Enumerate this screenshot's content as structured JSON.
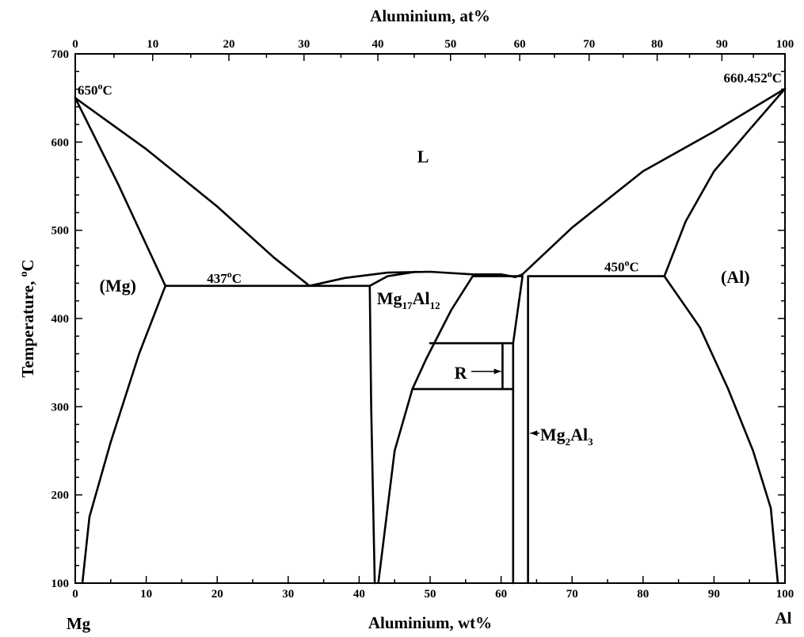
{
  "chart_data": {
    "type": "phase-diagram",
    "title": "",
    "xlabel": "Aluminium, wt%",
    "x2label": "Aluminium, at%",
    "ylabel": "Temperature, °C",
    "ylabel_parts": {
      "prefix": "Temperature, ",
      "sup": "o",
      "unit": "C"
    },
    "xlim": [
      0,
      100
    ],
    "ylim": [
      100,
      700
    ],
    "x_ticks": [
      0,
      10,
      20,
      30,
      40,
      50,
      60,
      70,
      80,
      90,
      100
    ],
    "x2_ticks": [
      0,
      10,
      20,
      30,
      40,
      50,
      60,
      70,
      80,
      90,
      100
    ],
    "y_ticks": [
      100,
      200,
      300,
      400,
      500,
      600,
      700
    ],
    "x2_tick_wt_positions": [
      0,
      10.91,
      21.65,
      32.23,
      42.64,
      52.88,
      62.62,
      72.4,
      81.99,
      91.11,
      100
    ],
    "grid": false,
    "end_labels": {
      "left": "Mg",
      "right": "Al"
    },
    "annotations": [
      {
        "text": "650",
        "deg": "o",
        "unit": "C",
        "x": 0,
        "y": 650
      },
      {
        "text": "660.452",
        "deg": "o",
        "unit": "C",
        "x": 100,
        "y": 660.452
      },
      {
        "text": "437",
        "deg": "o",
        "unit": "C",
        "x": 21,
        "y": 437
      },
      {
        "text": "450",
        "deg": "o",
        "unit": "C",
        "x": 77,
        "y": 450
      }
    ],
    "phase_labels": [
      {
        "id": "liquid",
        "text": "L"
      },
      {
        "id": "mg",
        "text": "(Mg)"
      },
      {
        "id": "al",
        "text": "(Al)"
      },
      {
        "id": "r",
        "text": "R"
      }
    ],
    "compounds": [
      {
        "id": "mg17al12",
        "parts": [
          "Mg",
          "17",
          "Al",
          "12"
        ]
      },
      {
        "id": "mg2al3",
        "parts": [
          "Mg",
          "2",
          "Al",
          "3"
        ]
      }
    ],
    "series": [
      {
        "id": "liquidus_left",
        "points": [
          [
            0,
            650
          ],
          [
            10,
            592
          ],
          [
            20,
            527
          ],
          [
            28,
            469
          ],
          [
            33,
            437
          ]
        ]
      },
      {
        "id": "liquidus_dome",
        "points": [
          [
            33,
            437
          ],
          [
            38,
            446
          ],
          [
            44,
            452
          ],
          [
            50,
            453
          ],
          [
            56,
            450
          ],
          [
            60,
            450
          ],
          [
            62,
            447
          ],
          [
            63,
            450
          ]
        ]
      },
      {
        "id": "liquidus_right",
        "points": [
          [
            63,
            450
          ],
          [
            70,
            503
          ],
          [
            80,
            567
          ],
          [
            90,
            612
          ],
          [
            100,
            660.452
          ]
        ]
      },
      {
        "id": "mg_solidus",
        "points": [
          [
            0,
            650
          ],
          [
            6,
            553
          ],
          [
            12.7,
            437
          ]
        ]
      },
      {
        "id": "mg_solvus",
        "points": [
          [
            12.7,
            437
          ],
          [
            9,
            360
          ],
          [
            5,
            260
          ],
          [
            2,
            175
          ],
          [
            1,
            100
          ]
        ]
      },
      {
        "id": "eutectic_437",
        "points": [
          [
            12.7,
            437
          ],
          [
            41.5,
            437
          ]
        ]
      },
      {
        "id": "mg17al12_left",
        "points": [
          [
            41.5,
            437
          ],
          [
            41.7,
            300
          ],
          [
            42.2,
            100
          ]
        ]
      },
      {
        "id": "mg17al12_top",
        "points": [
          [
            41.5,
            437
          ],
          [
            44,
            448
          ],
          [
            48,
            453
          ]
        ]
      },
      {
        "id": "mg17al12_right",
        "points": [
          [
            56,
            448
          ],
          [
            53,
            410
          ],
          [
            49.5,
            355
          ],
          [
            47.5,
            320
          ],
          [
            45,
            250
          ],
          [
            42.7,
            100
          ]
        ]
      },
      {
        "id": "eutectic_450_left",
        "points": [
          [
            56,
            448
          ],
          [
            63,
            448
          ]
        ]
      },
      {
        "id": "beta_left",
        "points": [
          [
            63,
            447
          ],
          [
            61.7,
            372
          ],
          [
            61.7,
            100
          ]
        ]
      },
      {
        "id": "beta_right",
        "points": [
          [
            63.8,
            447
          ],
          [
            63.8,
            100
          ]
        ]
      },
      {
        "id": "r_top",
        "points": [
          [
            50,
            372
          ],
          [
            61.7,
            372
          ]
        ]
      },
      {
        "id": "r_bottom",
        "points": [
          [
            47.5,
            320
          ],
          [
            61.7,
            320
          ]
        ]
      },
      {
        "id": "r_inner",
        "points": [
          [
            60.2,
            372
          ],
          [
            60.2,
            320
          ]
        ]
      },
      {
        "id": "eutectic_450_right",
        "points": [
          [
            63.8,
            448
          ],
          [
            83,
            448
          ]
        ]
      },
      {
        "id": "al_solidus",
        "points": [
          [
            100,
            660.452
          ],
          [
            95,
            614
          ],
          [
            90,
            567
          ],
          [
            86,
            510
          ],
          [
            83,
            448
          ]
        ]
      },
      {
        "id": "al_solvus",
        "points": [
          [
            83,
            448
          ],
          [
            88,
            390
          ],
          [
            92,
            320
          ],
          [
            95.5,
            250
          ],
          [
            98,
            185
          ],
          [
            99,
            100
          ]
        ]
      }
    ]
  }
}
